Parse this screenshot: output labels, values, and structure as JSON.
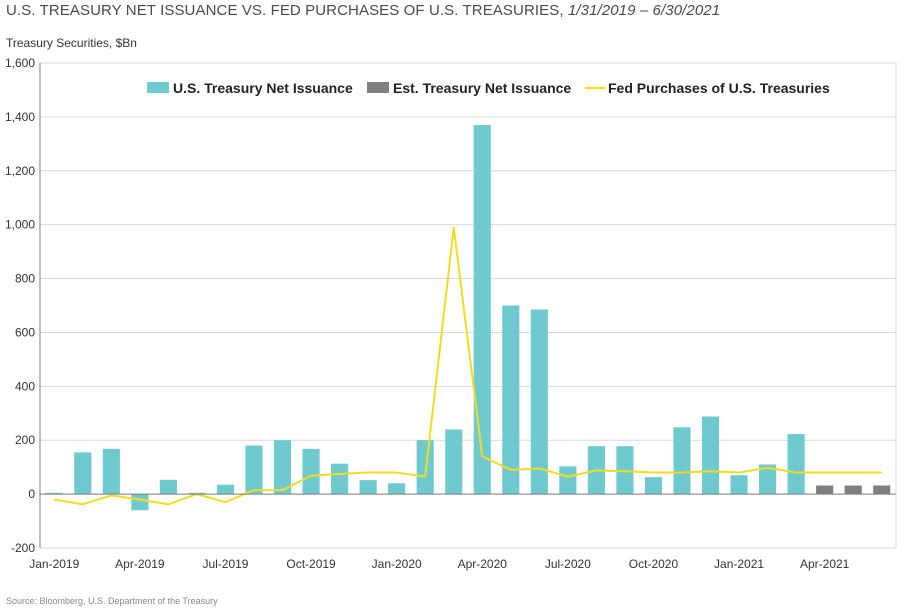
{
  "title": {
    "main": "U.S. TREASURY NET ISSUANCE VS. FED PURCHASES OF U.S. TREASURIES,",
    "range": "1/31/2019 – 6/30/2021"
  },
  "unit_label": "Treasury Securities, $Bn",
  "source": "Source: Bloomberg, U.S. Department of the Treasury",
  "colors": {
    "issuance": "#6fcacf",
    "estimated": "#7f7f7f",
    "fed": "#f2dc22",
    "grid": "#d9d9d9",
    "axis": "#7f7f7f"
  },
  "chart_data": {
    "type": "bar",
    "x": [
      "2019-01",
      "2019-02",
      "2019-03",
      "2019-04",
      "2019-05",
      "2019-06",
      "2019-07",
      "2019-08",
      "2019-09",
      "2019-10",
      "2019-11",
      "2019-12",
      "2020-01",
      "2020-02",
      "2020-03",
      "2020-04",
      "2020-05",
      "2020-06",
      "2020-07",
      "2020-08",
      "2020-09",
      "2020-10",
      "2020-11",
      "2020-12",
      "2021-01",
      "2021-02",
      "2021-03",
      "2021-04",
      "2021-05",
      "2021-06"
    ],
    "tick_labels": [
      "Jan-2019",
      "Apr-2019",
      "Jul-2019",
      "Oct-2019",
      "Jan-2020",
      "Apr-2020",
      "Jul-2020",
      "Oct-2020",
      "Jan-2021",
      "Apr-2021"
    ],
    "ylim": [
      -200,
      1600
    ],
    "yticks": [
      "-200",
      "0",
      "200",
      "400",
      "600",
      "800",
      "1,000",
      "1,200",
      "1,400",
      "1,600"
    ],
    "ytick_values": [
      -200,
      0,
      200,
      400,
      600,
      800,
      1000,
      1200,
      1400,
      1600
    ],
    "grid": true,
    "legend_position": "top",
    "series": [
      {
        "name": "U.S. Treasury Net Issuance",
        "type": "bar",
        "values": [
          5,
          155,
          168,
          -60,
          53,
          5,
          35,
          180,
          200,
          168,
          113,
          52,
          40,
          200,
          240,
          1370,
          700,
          685,
          103,
          178,
          178,
          63,
          248,
          288,
          70,
          110,
          223,
          null,
          null,
          null
        ]
      },
      {
        "name": "Est. Treasury Net Issuance",
        "type": "bar",
        "values": [
          null,
          null,
          null,
          null,
          null,
          null,
          null,
          null,
          null,
          null,
          null,
          null,
          null,
          null,
          null,
          null,
          null,
          null,
          null,
          null,
          null,
          null,
          null,
          null,
          null,
          null,
          null,
          32,
          32,
          32
        ]
      },
      {
        "name": "Fed Purchases of U.S. Treasuries",
        "type": "line",
        "values": [
          -20,
          -38,
          -5,
          -20,
          -38,
          0,
          -30,
          15,
          15,
          68,
          75,
          80,
          80,
          65,
          990,
          140,
          90,
          95,
          65,
          88,
          85,
          80,
          80,
          85,
          80,
          98,
          80,
          80,
          80,
          80
        ]
      }
    ]
  }
}
